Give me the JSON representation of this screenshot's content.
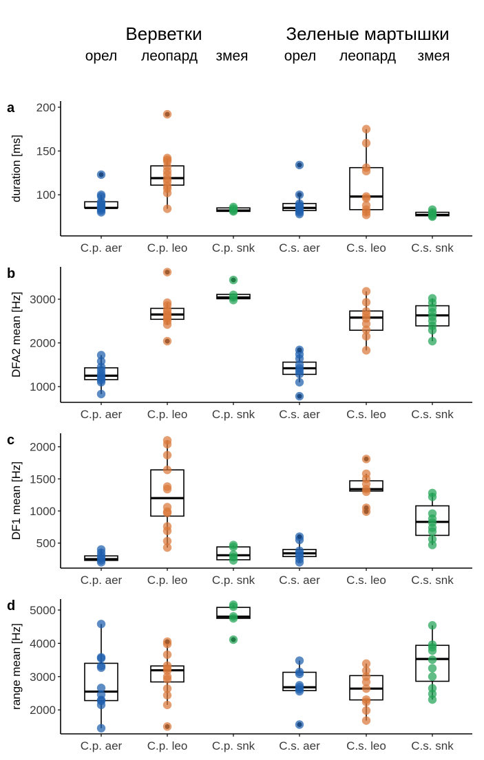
{
  "header": {
    "groups": [
      {
        "title": "Верветки",
        "calls": [
          "орел",
          "леопард",
          "змея"
        ]
      },
      {
        "title": "Зеленые мартышки",
        "calls": [
          "орел",
          "леопард",
          "змея"
        ]
      }
    ]
  },
  "colors": {
    "aer": "#1f5fae",
    "leo": "#d9783a",
    "snk": "#22a456",
    "box": "#000000",
    "axis": "#000000"
  },
  "chart_data": [
    {
      "type": "box",
      "panel": "a",
      "title": "",
      "xlabel": "",
      "ylabel": "duration [ms]",
      "categories": [
        "C.p. aer",
        "C.p. leo",
        "C.p. snk",
        "C.s. aer",
        "C.s. leo",
        "C.s. snk"
      ],
      "call_types": [
        "aer",
        "leo",
        "snk",
        "aer",
        "leo",
        "snk"
      ],
      "yticks": [
        100,
        150,
        200
      ],
      "ylim": [
        53,
        207
      ],
      "grid": false,
      "boxes": [
        {
          "q1": 85,
          "median": 85,
          "q3": 92,
          "whisker_low": 80,
          "whisker_high": 100,
          "points": [
            123,
            100,
            98,
            92,
            90,
            88,
            86,
            85,
            84,
            82,
            80
          ]
        },
        {
          "q1": 111,
          "median": 119,
          "q3": 133,
          "whisker_low": 84,
          "whisker_high": 142,
          "points": [
            192,
            142,
            140,
            138,
            132,
            127,
            123,
            118,
            115,
            110,
            107,
            102,
            84
          ]
        },
        {
          "q1": 81,
          "median": 82,
          "q3": 85,
          "whisker_low": 81,
          "whisker_high": 86,
          "points": [
            86,
            84,
            82,
            81
          ]
        },
        {
          "q1": 82,
          "median": 85,
          "q3": 90,
          "whisker_low": 78,
          "whisker_high": 98,
          "points": [
            134,
            100,
            90,
            88,
            86,
            84,
            82,
            80,
            78
          ]
        },
        {
          "q1": 83,
          "median": 98,
          "q3": 131,
          "whisker_low": 77,
          "whisker_high": 175,
          "points": [
            175,
            159,
            131,
            127,
            98,
            96,
            88,
            83,
            80,
            77
          ]
        },
        {
          "q1": 76,
          "median": 77,
          "q3": 80,
          "whisker_low": 75,
          "whisker_high": 83,
          "points": [
            83,
            80,
            78,
            76,
            75
          ]
        }
      ]
    },
    {
      "type": "box",
      "panel": "b",
      "title": "",
      "xlabel": "",
      "ylabel": "DFA2 mean [Hz]",
      "categories": [
        "C.p. aer",
        "C.p. leo",
        "C.p. snk",
        "C.s. aer",
        "C.s. leo",
        "C.s. snk"
      ],
      "call_types": [
        "aer",
        "leo",
        "snk",
        "aer",
        "leo",
        "snk"
      ],
      "yticks": [
        1000,
        2000,
        3000
      ],
      "ylim": [
        640,
        3740
      ],
      "grid": false,
      "boxes": [
        {
          "q1": 1160,
          "median": 1250,
          "q3": 1430,
          "whisker_low": 830,
          "whisker_high": 1720,
          "points": [
            1720,
            1580,
            1450,
            1380,
            1300,
            1250,
            1200,
            1150,
            1100,
            830
          ]
        },
        {
          "q1": 2540,
          "median": 2650,
          "q3": 2790,
          "whisker_low": 2420,
          "whisker_high": 2920,
          "points": [
            3620,
            2920,
            2860,
            2760,
            2700,
            2650,
            2600,
            2560,
            2500,
            2420,
            2040
          ]
        },
        {
          "q1": 3010,
          "median": 3040,
          "q3": 3110,
          "whisker_low": 2980,
          "whisker_high": 3110,
          "points": [
            3440,
            3100,
            3040,
            2980
          ]
        },
        {
          "q1": 1280,
          "median": 1420,
          "q3": 1560,
          "whisker_low": 1100,
          "whisker_high": 1740,
          "points": [
            1840,
            1740,
            1640,
            1500,
            1420,
            1360,
            1290,
            1100,
            780
          ]
        },
        {
          "q1": 2290,
          "median": 2580,
          "q3": 2730,
          "whisker_low": 1830,
          "whisker_high": 3180,
          "points": [
            3180,
            2930,
            2720,
            2640,
            2560,
            2440,
            2300,
            2150,
            1830
          ]
        },
        {
          "q1": 2390,
          "median": 2630,
          "q3": 2850,
          "whisker_low": 2040,
          "whisker_high": 3020,
          "points": [
            3020,
            2920,
            2800,
            2700,
            2600,
            2500,
            2390,
            2290,
            2040
          ]
        }
      ]
    },
    {
      "type": "box",
      "panel": "c",
      "title": "",
      "xlabel": "",
      "ylabel": "DF1 mean [Hz]",
      "categories": [
        "C.p. aer",
        "C.p. leo",
        "C.p. snk",
        "C.s. aer",
        "C.s. leo",
        "C.s. snk"
      ],
      "call_types": [
        "aer",
        "leo",
        "snk",
        "aer",
        "leo",
        "snk"
      ],
      "yticks": [
        500,
        1000,
        1500,
        2000
      ],
      "ylim": [
        110,
        2210
      ],
      "grid": false,
      "boxes": [
        {
          "q1": 230,
          "median": 250,
          "q3": 300,
          "whisker_low": 200,
          "whisker_high": 400,
          "points": [
            400,
            350,
            300,
            260,
            230,
            200
          ]
        },
        {
          "q1": 920,
          "median": 1200,
          "q3": 1640,
          "whisker_low": 430,
          "whisker_high": 2100,
          "points": [
            2100,
            2040,
            1870,
            1640,
            1380,
            1340,
            1060,
            990,
            970,
            760,
            690,
            530,
            430
          ]
        },
        {
          "q1": 240,
          "median": 310,
          "q3": 440,
          "whisker_low": 230,
          "whisker_high": 470,
          "points": [
            470,
            440,
            320,
            280,
            230
          ]
        },
        {
          "q1": 290,
          "median": 340,
          "q3": 400,
          "whisker_low": 200,
          "whisker_high": 550,
          "points": [
            600,
            550,
            380,
            340,
            300,
            250,
            200
          ]
        },
        {
          "q1": 1310,
          "median": 1340,
          "q3": 1470,
          "whisker_low": 1300,
          "whisker_high": 1580,
          "points": [
            1810,
            1580,
            1500,
            1420,
            1340,
            1300,
            1050,
            990
          ]
        },
        {
          "q1": 620,
          "median": 830,
          "q3": 1080,
          "whisker_low": 470,
          "whisker_high": 1280,
          "points": [
            1280,
            1220,
            960,
            880,
            820,
            740,
            680,
            560,
            470
          ]
        }
      ]
    },
    {
      "type": "box",
      "panel": "d",
      "title": "",
      "xlabel": "",
      "ylabel": "range mean [Hz]",
      "categories": [
        "C.p. aer",
        "C.p. leo",
        "C.p. snk",
        "C.s. aer",
        "C.s. leo",
        "C.s. snk"
      ],
      "call_types": [
        "aer",
        "leo",
        "snk",
        "aer",
        "leo",
        "snk"
      ],
      "yticks": [
        2000,
        3000,
        4000,
        5000
      ],
      "ylim": [
        1280,
        5330
      ],
      "grid": false,
      "boxes": [
        {
          "q1": 2280,
          "median": 2550,
          "q3": 3400,
          "whisker_low": 1450,
          "whisker_high": 4580,
          "points": [
            4580,
            3580,
            3550,
            3320,
            3270,
            2660,
            2460,
            2300,
            2270,
            2150,
            1450
          ]
        },
        {
          "q1": 2840,
          "median": 3190,
          "q3": 3320,
          "whisker_low": 2150,
          "whisker_high": 3980,
          "points": [
            4050,
            3980,
            3660,
            3330,
            3250,
            3180,
            3000,
            2920,
            2640,
            2440,
            2150,
            1500
          ]
        },
        {
          "q1": 4750,
          "median": 4800,
          "q3": 5080,
          "whisker_low": 4750,
          "whisker_high": 5160,
          "points": [
            5160,
            5100,
            4810,
            4750,
            4110
          ]
        },
        {
          "q1": 2580,
          "median": 2680,
          "q3": 3130,
          "whisker_low": 2560,
          "whisker_high": 3480,
          "points": [
            3480,
            3140,
            3080,
            2740,
            2680,
            2620,
            2560,
            1560
          ]
        },
        {
          "q1": 2300,
          "median": 2640,
          "q3": 3030,
          "whisker_low": 1680,
          "whisker_high": 3390,
          "points": [
            3390,
            3180,
            3000,
            2840,
            2640,
            2310,
            2240,
            1980,
            1680
          ]
        },
        {
          "q1": 2860,
          "median": 3530,
          "q3": 3940,
          "whisker_low": 2310,
          "whisker_high": 4540,
          "points": [
            4540,
            3960,
            3880,
            3780,
            3510,
            3250,
            3000,
            2650,
            2480,
            2310
          ]
        }
      ]
    }
  ]
}
